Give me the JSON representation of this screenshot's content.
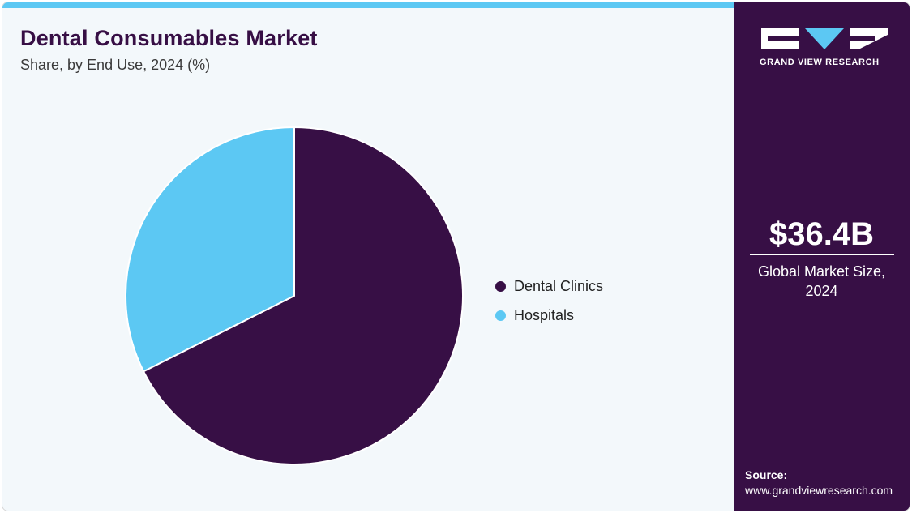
{
  "header": {
    "title": "Dental Consumables Market",
    "subtitle": "Share, by End Use, 2024 (%)"
  },
  "chart_data": {
    "type": "pie",
    "title": "Dental Consumables Market",
    "subtitle": "Share, by End Use, 2024 (%)",
    "categories": [
      "Dental Clinics",
      "Hospitals"
    ],
    "values": [
      67.6,
      32.4
    ],
    "colors": [
      "#370f45",
      "#5cc8f3"
    ],
    "legend_position": "right"
  },
  "sidebar": {
    "brand": "GRAND VIEW RESEARCH",
    "market_value": "$36.4B",
    "market_label": "Global Market Size, 2024",
    "source_heading": "Source:",
    "source_url": "www.grandviewresearch.com"
  },
  "colors": {
    "brand_purple": "#370f45",
    "accent_blue": "#5cc8f3",
    "panel_background": "#f3f8fb"
  }
}
